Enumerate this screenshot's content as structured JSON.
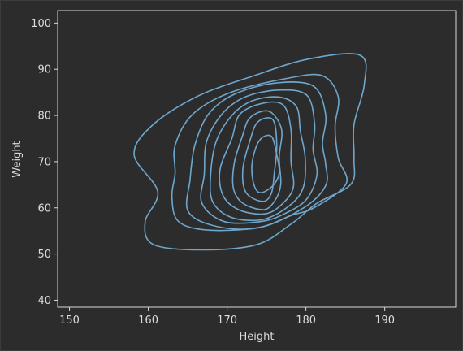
{
  "chart_data": {
    "type": "contour",
    "title": "",
    "xlabel": "Height",
    "ylabel": "Weight",
    "xlim": [
      148.5,
      199
    ],
    "ylim": [
      38.5,
      102.7
    ],
    "xticks": [
      150,
      160,
      170,
      180,
      190
    ],
    "yticks": [
      40,
      50,
      60,
      70,
      80,
      90,
      100
    ],
    "grid": false,
    "legend": false,
    "colors": {
      "background": "#2c2c2c",
      "axes_face": "#2c2c2c",
      "spine": "#d8d8d8",
      "text": "#dcdcdc",
      "contour": "#6fa6cc"
    },
    "contours": [
      {
        "points": [
          [
            173.7,
            52.0
          ],
          [
            166.5,
            50.9
          ],
          [
            160.6,
            52.1
          ],
          [
            159.6,
            57.0
          ],
          [
            161.2,
            63.5
          ],
          [
            158.2,
            71.5
          ],
          [
            160.6,
            78.0
          ],
          [
            166.3,
            84.2
          ],
          [
            173.4,
            88.6
          ],
          [
            180.3,
            92.2
          ],
          [
            186.9,
            93.0
          ],
          [
            187.4,
            86.6
          ],
          [
            186.1,
            78.0
          ],
          [
            186.1,
            70.7
          ],
          [
            185.7,
            65.1
          ],
          [
            181.4,
            61.0
          ],
          [
            178.2,
            56.6
          ]
        ]
      },
      {
        "points": [
          [
            173.9,
            55.7
          ],
          [
            167.5,
            55.2
          ],
          [
            163.8,
            57.1
          ],
          [
            163.0,
            62.4
          ],
          [
            163.4,
            67.5
          ],
          [
            163.4,
            73.5
          ],
          [
            165.6,
            80.2
          ],
          [
            170.3,
            84.9
          ],
          [
            177.5,
            88.0
          ],
          [
            182.1,
            88.6
          ],
          [
            184.1,
            84.0
          ],
          [
            183.7,
            77.6
          ],
          [
            184.1,
            70.8
          ],
          [
            185.1,
            65.2
          ],
          [
            181.0,
            60.0
          ],
          [
            178.2,
            58.4
          ]
        ]
      },
      {
        "points": [
          [
            174.3,
            55.8
          ],
          [
            168.9,
            55.9
          ],
          [
            165.1,
            59.1
          ],
          [
            165.3,
            66.1
          ],
          [
            165.9,
            73.5
          ],
          [
            167.6,
            80.2
          ],
          [
            170.8,
            84.5
          ],
          [
            176.0,
            87.0
          ],
          [
            180.9,
            86.4
          ],
          [
            182.5,
            80.2
          ],
          [
            182.1,
            74.0
          ],
          [
            182.5,
            69.5
          ],
          [
            182.5,
            64.8
          ],
          [
            179.8,
            60.1
          ]
        ]
      },
      {
        "points": [
          [
            174.5,
            57.1
          ],
          [
            169.7,
            57.0
          ],
          [
            166.8,
            61.0
          ],
          [
            167.1,
            67.3
          ],
          [
            167.4,
            74.4
          ],
          [
            169.4,
            80.4
          ],
          [
            172.3,
            84.0
          ],
          [
            176.5,
            85.5
          ],
          [
            180.1,
            84.4
          ],
          [
            181.1,
            78.2
          ],
          [
            180.9,
            72.6
          ],
          [
            181.4,
            67.2
          ],
          [
            180.1,
            61.9
          ],
          [
            177.6,
            59.0
          ]
        ]
      },
      {
        "points": [
          [
            174.6,
            57.5
          ],
          [
            170.6,
            57.9
          ],
          [
            168.2,
            61.2
          ],
          [
            167.9,
            66.8
          ],
          [
            168.6,
            74.3
          ],
          [
            170.6,
            80.0
          ],
          [
            173.1,
            83.1
          ],
          [
            176.5,
            84.0
          ],
          [
            178.8,
            81.9
          ],
          [
            179.3,
            76.5
          ],
          [
            179.9,
            70.9
          ],
          [
            179.7,
            64.6
          ],
          [
            178.0,
            60.6
          ]
        ]
      },
      {
        "points": [
          [
            174.8,
            58.7
          ],
          [
            171.6,
            59.5
          ],
          [
            169.5,
            62.6
          ],
          [
            169.1,
            68.3
          ],
          [
            170.6,
            75.0
          ],
          [
            171.6,
            80.2
          ],
          [
            174.4,
            82.6
          ],
          [
            177.1,
            82.3
          ],
          [
            178.1,
            77.0
          ],
          [
            178.1,
            70.2
          ],
          [
            178.4,
            64.4
          ],
          [
            176.9,
            60.7
          ]
        ]
      },
      {
        "points": [
          [
            174.6,
            59.6
          ],
          [
            172.0,
            61.0
          ],
          [
            170.8,
            64.2
          ],
          [
            170.9,
            69.6
          ],
          [
            171.9,
            75.3
          ],
          [
            172.9,
            79.5
          ],
          [
            175.3,
            80.9
          ],
          [
            176.9,
            77.0
          ],
          [
            176.6,
            70.9
          ],
          [
            176.8,
            65.0
          ],
          [
            176.0,
            61.4
          ]
        ]
      },
      {
        "points": [
          [
            174.5,
            61.4
          ],
          [
            172.4,
            63.3
          ],
          [
            172.0,
            68.4
          ],
          [
            172.9,
            74.6
          ],
          [
            173.9,
            78.6
          ],
          [
            175.8,
            79.1
          ],
          [
            176.3,
            73.7
          ],
          [
            176.0,
            67.7
          ],
          [
            175.6,
            63.1
          ]
        ]
      },
      {
        "points": [
          [
            174.1,
            63.3
          ],
          [
            173.3,
            65.7
          ],
          [
            173.2,
            70.1
          ],
          [
            174.1,
            74.6
          ],
          [
            175.6,
            75.5
          ],
          [
            176.3,
            71.5
          ],
          [
            176.6,
            67.5
          ],
          [
            175.7,
            64.6
          ]
        ]
      }
    ]
  }
}
